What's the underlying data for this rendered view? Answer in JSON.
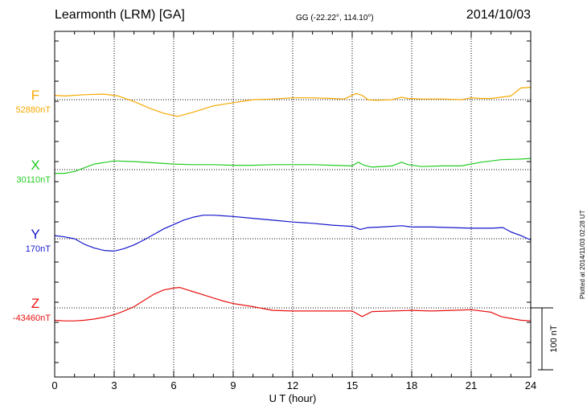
{
  "header": {
    "station": "Learmonth (LRM)  [GA]",
    "coords": "GG (-22.22°, 114.10°)",
    "date": "2014/10/03"
  },
  "footer": {
    "plotted": "Plotted at 2014/11/03 02:28 UT"
  },
  "chart_data": {
    "type": "line",
    "xlabel": "U T (hour)",
    "xlim": [
      0,
      24
    ],
    "xticks": [
      0,
      3,
      6,
      9,
      12,
      15,
      18,
      21,
      24
    ],
    "scale_bar": "100 nT",
    "grid": "dotted",
    "series": [
      {
        "name": "F",
        "baseline_label": "52880nT",
        "baseline_nT": 52880,
        "color": "#f5a800",
        "x": [
          0,
          0.5,
          1.5,
          2.5,
          3.2,
          4,
          4.8,
          5.5,
          6.2,
          7,
          8,
          9,
          10,
          11,
          12,
          13,
          14,
          14.6,
          15.2,
          15.5,
          15.8,
          16.2,
          17,
          17.5,
          17.8,
          18.5,
          19.5,
          20.5,
          21,
          21.5,
          22,
          22.5,
          23,
          23.5,
          24
        ],
        "y": [
          7,
          6,
          8,
          9,
          6,
          -3,
          -14,
          -22,
          -27,
          -20,
          -10,
          -5,
          0,
          1,
          3,
          3,
          2,
          1,
          10,
          7,
          0,
          -1,
          0,
          4,
          2,
          1,
          1,
          0,
          3,
          2,
          2,
          4,
          6,
          19,
          20
        ]
      },
      {
        "name": "X",
        "baseline_label": "30110nT",
        "baseline_nT": 30110,
        "color": "#22cc22",
        "x": [
          0,
          0.5,
          1,
          2,
          3,
          4,
          5,
          6,
          7,
          8,
          9,
          10,
          11,
          12,
          13,
          14,
          15,
          15.3,
          15.6,
          16,
          17,
          17.5,
          17.8,
          18.5,
          19.5,
          20.5,
          21.5,
          22.5,
          23.5,
          24
        ],
        "y": [
          -6,
          -6,
          -3,
          9,
          14,
          13,
          11,
          9,
          8,
          8,
          7,
          7,
          8,
          8,
          8,
          7,
          6,
          12,
          7,
          4,
          6,
          12,
          8,
          5,
          6,
          6,
          12,
          16,
          17,
          18
        ]
      },
      {
        "name": "Y",
        "baseline_label": "170nT",
        "baseline_nT": 170,
        "color": "#1515cc",
        "x": [
          0,
          0.5,
          1,
          1.5,
          2,
          2.5,
          3,
          3.5,
          4,
          4.5,
          5,
          5.5,
          6,
          6.5,
          7,
          7.5,
          8,
          8.5,
          9,
          10,
          11,
          12,
          13,
          14,
          15,
          15.4,
          15.8,
          16.5,
          17.5,
          18,
          19,
          20,
          21,
          22,
          22.6,
          23,
          23.5,
          24
        ],
        "y": [
          5,
          3,
          0,
          -9,
          -15,
          -19,
          -20,
          -16,
          -10,
          -2,
          7,
          16,
          23,
          30,
          35,
          38,
          38,
          37,
          36,
          33,
          30,
          27,
          25,
          22,
          20,
          15,
          18,
          19,
          21,
          19,
          19,
          18,
          17,
          17,
          18,
          11,
          5,
          -2
        ]
      },
      {
        "name": "Z",
        "baseline_label": "-43460nT",
        "baseline_nT": -43460,
        "color": "#e81010",
        "x": [
          0,
          0.5,
          1,
          1.5,
          2,
          2.5,
          3,
          3.5,
          4,
          4.5,
          5,
          5.5,
          6,
          6.3,
          6.7,
          7,
          7.5,
          8,
          8.5,
          9,
          10,
          11,
          12,
          13,
          14,
          15,
          15.5,
          16,
          17,
          18,
          19,
          20,
          21,
          22,
          22.5,
          23,
          23.5,
          24
        ],
        "y": [
          -20,
          -21,
          -21,
          -20,
          -18,
          -15,
          -11,
          -5,
          2,
          12,
          22,
          29,
          32,
          33,
          29,
          26,
          21,
          16,
          11,
          7,
          2,
          -4,
          -5,
          -5,
          -5,
          -5,
          -14,
          -6,
          -5,
          -4,
          -5,
          -4,
          -3,
          -7,
          -14,
          -17,
          -20,
          -21
        ]
      }
    ]
  }
}
